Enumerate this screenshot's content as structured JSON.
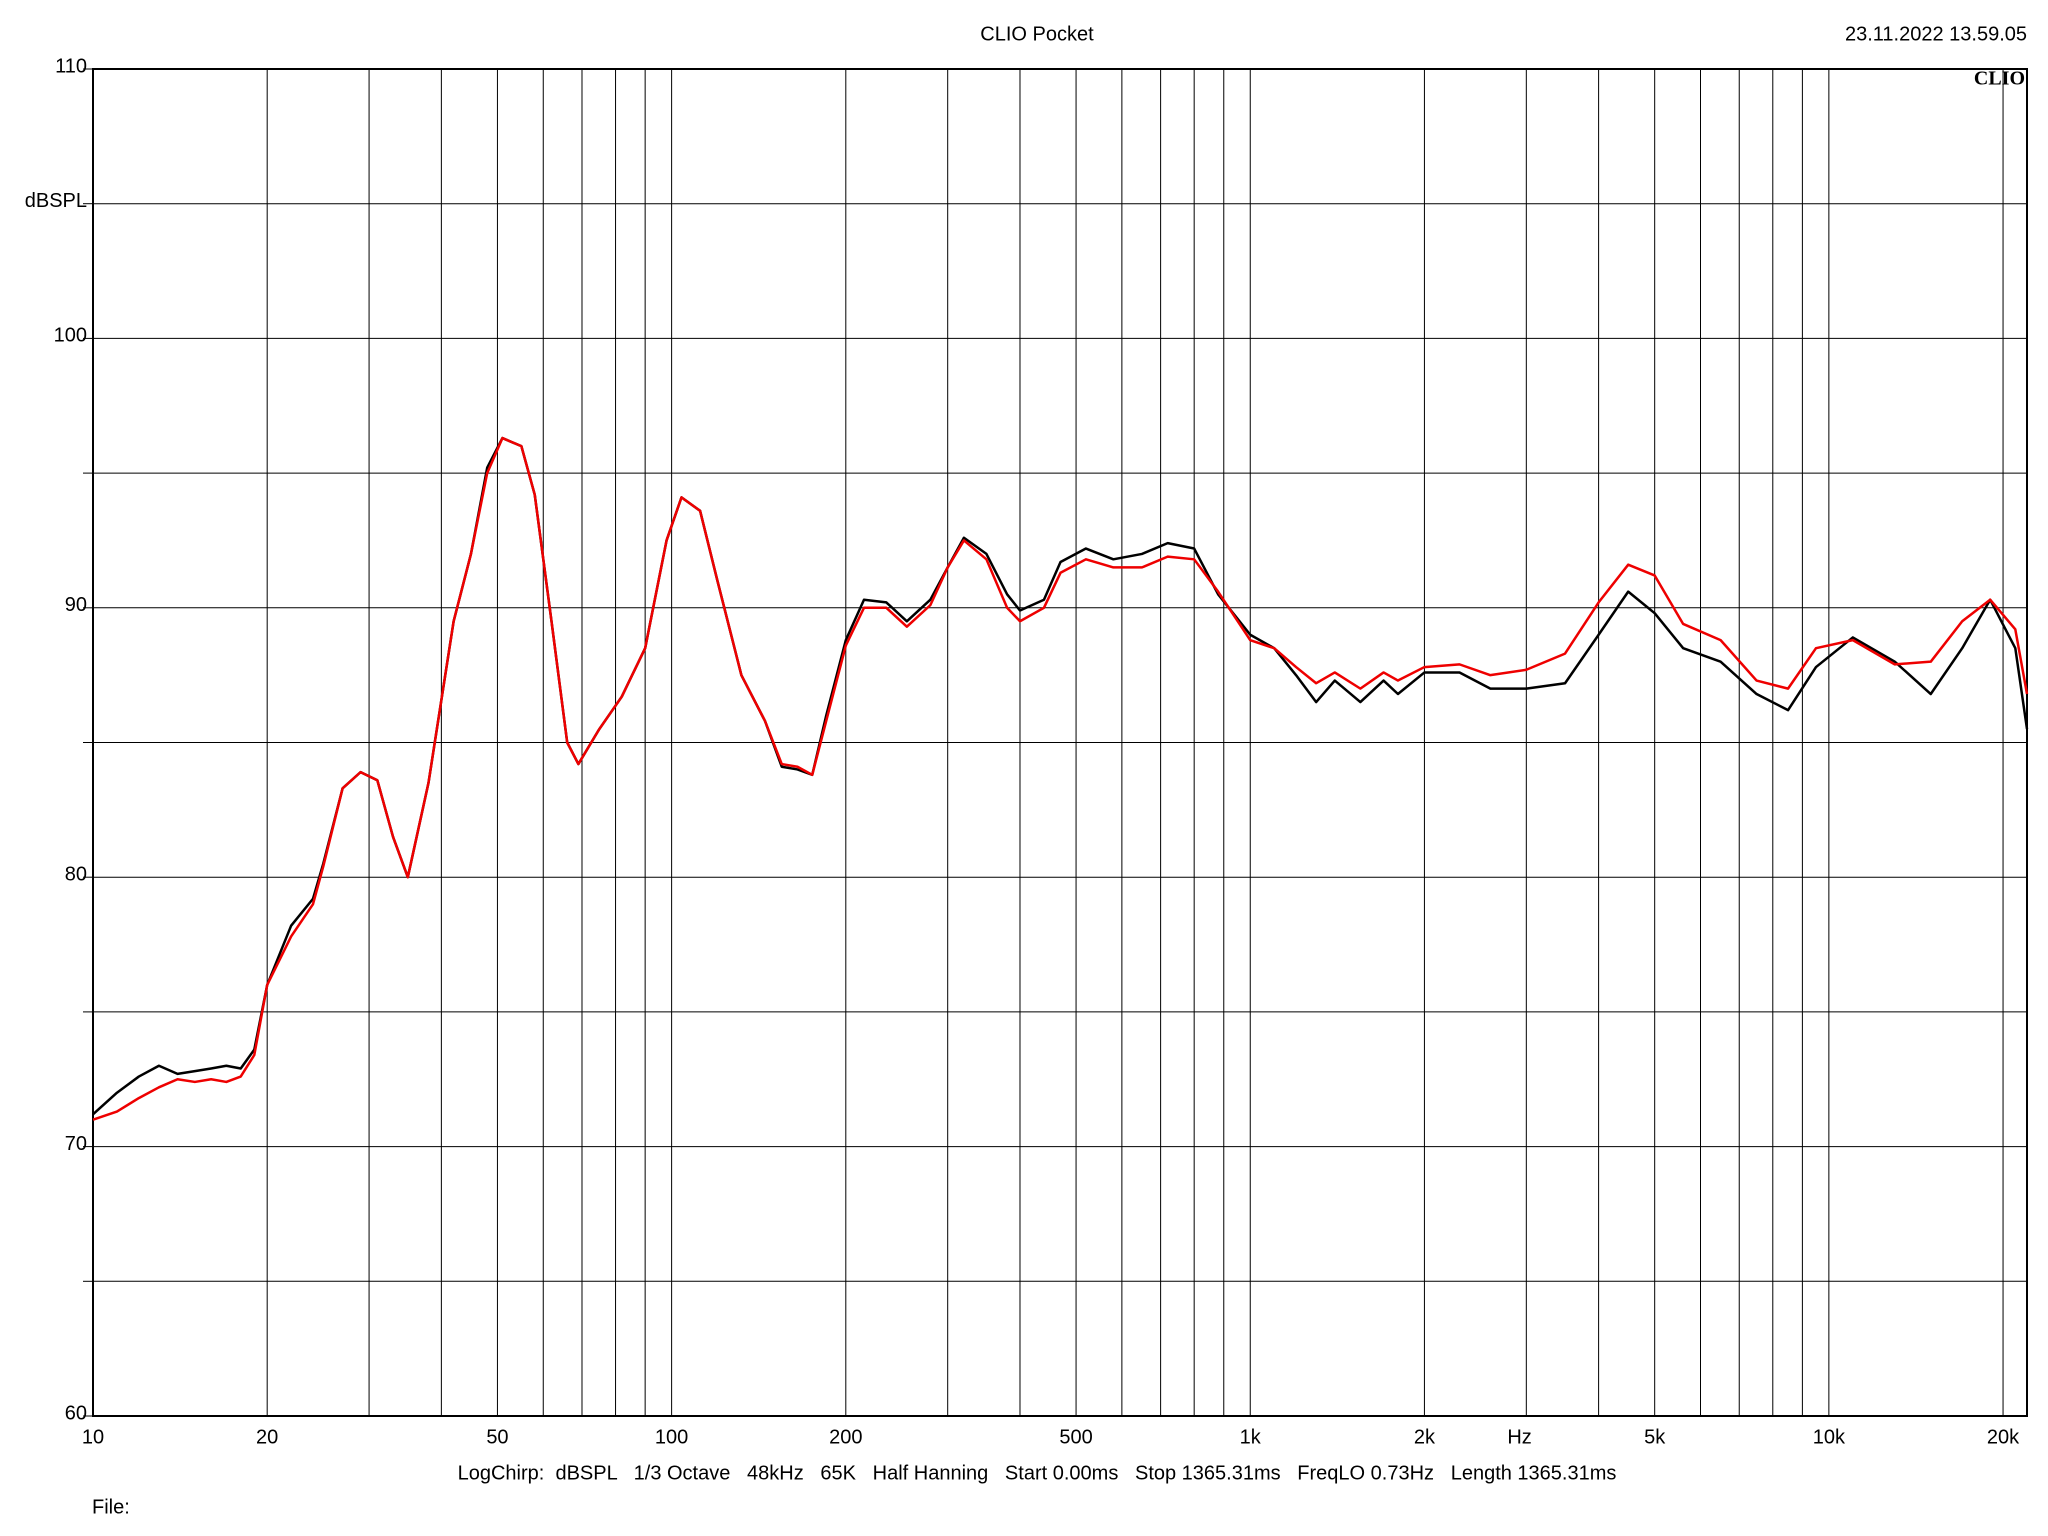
{
  "chart_data": {
    "type": "line",
    "title": "CLIO Pocket",
    "timestamp": "23.11.2022 13.59.05",
    "logo": "CLIO",
    "xlabel": "Hz",
    "ylabel": "dBSPL",
    "footer": "LogChirp:  dBSPL   1/3 Octave   48kHz   65K   Half Hanning   Start 0.00ms   Stop 1365.31ms   FreqLO 0.73Hz   Length 1365.31ms",
    "file_label": "File:",
    "xscale": "log",
    "grid": true,
    "xlim": [
      10,
      22000
    ],
    "ylim": [
      60,
      110
    ],
    "xticks": [
      10,
      20,
      50,
      100,
      200,
      500,
      {
        "value": 1000,
        "label": "1k"
      },
      {
        "value": 2000,
        "label": "2k"
      },
      {
        "value": 5000,
        "label": "5k"
      },
      {
        "value": 10000,
        "label": "10k"
      },
      {
        "value": 20000,
        "label": "20k"
      }
    ],
    "xgrid_minor": [
      30,
      40,
      60,
      70,
      80,
      90,
      300,
      400,
      600,
      700,
      800,
      900,
      3000,
      4000,
      6000,
      7000,
      8000,
      9000
    ],
    "yticks": [
      60,
      70,
      80,
      90,
      100,
      110
    ],
    "ygrid_minor": [
      65,
      75,
      85,
      95,
      105
    ],
    "x": [
      10,
      11,
      12,
      13,
      14,
      15,
      16,
      17,
      18,
      19,
      20,
      22,
      24,
      25,
      27,
      29,
      31,
      33,
      35,
      38,
      42,
      45,
      48,
      51,
      55,
      58,
      62,
      66,
      69,
      75,
      82,
      90,
      98,
      104,
      112,
      120,
      132,
      145,
      155,
      165,
      175,
      185,
      200,
      215,
      235,
      255,
      280,
      300,
      320,
      350,
      380,
      400,
      440,
      470,
      520,
      580,
      650,
      720,
      800,
      880,
      1000,
      1100,
      1200,
      1300,
      1400,
      1550,
      1700,
      1800,
      2000,
      2300,
      2600,
      3000,
      3500,
      4000,
      4500,
      5000,
      5600,
      6500,
      7500,
      8500,
      9500,
      11000,
      13000,
      15000,
      17000,
      19000,
      21000,
      22000
    ],
    "series": [
      {
        "name": "black",
        "color": "#000000",
        "values": [
          71.2,
          72.0,
          72.6,
          73.0,
          72.7,
          72.8,
          72.9,
          73.0,
          72.9,
          73.6,
          76.0,
          78.2,
          79.2,
          80.5,
          83.3,
          83.9,
          83.6,
          81.5,
          80.0,
          83.5,
          89.5,
          92.0,
          95.2,
          96.3,
          96.0,
          94.2,
          89.5,
          85.0,
          84.2,
          85.5,
          86.7,
          88.5,
          92.5,
          94.1,
          93.6,
          91.0,
          87.5,
          85.8,
          84.1,
          84.0,
          83.8,
          86.0,
          88.8,
          90.3,
          90.2,
          89.5,
          90.3,
          91.5,
          92.6,
          92.0,
          90.5,
          89.9,
          90.3,
          91.7,
          92.2,
          91.8,
          92.0,
          92.4,
          92.2,
          90.5,
          89.0,
          88.5,
          87.5,
          86.5,
          87.3,
          86.5,
          87.3,
          86.8,
          87.6,
          87.6,
          87.0,
          87.0,
          87.2,
          89.0,
          90.6,
          89.8,
          88.5,
          88.0,
          86.8,
          86.2,
          87.8,
          88.9,
          88.0,
          86.8,
          88.5,
          90.3,
          88.5,
          85.5
        ]
      },
      {
        "name": "red",
        "color": "#ee0000",
        "values": [
          71.0,
          71.3,
          71.8,
          72.2,
          72.5,
          72.4,
          72.5,
          72.4,
          72.6,
          73.4,
          76.0,
          77.8,
          79.0,
          80.4,
          83.3,
          83.9,
          83.6,
          81.5,
          80.0,
          83.5,
          89.5,
          92.0,
          95.0,
          96.3,
          96.0,
          94.2,
          89.5,
          85.0,
          84.2,
          85.5,
          86.7,
          88.5,
          92.5,
          94.1,
          93.6,
          91.0,
          87.5,
          85.8,
          84.2,
          84.1,
          83.8,
          85.8,
          88.6,
          90.0,
          90.0,
          89.3,
          90.1,
          91.5,
          92.5,
          91.8,
          90.0,
          89.5,
          90.0,
          91.3,
          91.8,
          91.5,
          91.5,
          91.9,
          91.8,
          90.6,
          88.8,
          88.5,
          87.8,
          87.2,
          87.6,
          87.0,
          87.6,
          87.3,
          87.8,
          87.9,
          87.5,
          87.7,
          88.3,
          90.2,
          91.6,
          91.2,
          89.4,
          88.8,
          87.3,
          87.0,
          88.5,
          88.8,
          87.9,
          88.0,
          89.5,
          90.3,
          89.2,
          86.8
        ]
      }
    ]
  }
}
